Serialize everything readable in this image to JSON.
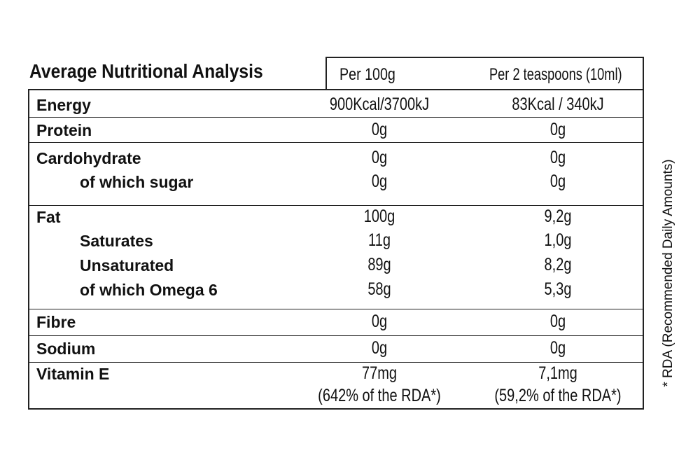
{
  "title": "Average Nutritional Analysis",
  "columns": {
    "per_100g": "Per 100g",
    "per_serving": "Per 2 teaspoons (10ml)"
  },
  "rows": {
    "energy": {
      "label": "Energy",
      "v1": "900Kcal/3700kJ",
      "v2": "83Kcal / 340kJ"
    },
    "protein": {
      "label": "Protein",
      "v1": "0g",
      "v2": "0g"
    },
    "carbohydrate": {
      "label": "Cardohydrate",
      "v1": "0g",
      "v2": "0g"
    },
    "sugar": {
      "label": "of which sugar",
      "v1": "0g",
      "v2": "0g"
    },
    "fat": {
      "label": "Fat",
      "v1": "100g",
      "v2": "9,2g"
    },
    "saturates": {
      "label": "Saturates",
      "v1": "11g",
      "v2": "1,0g"
    },
    "unsaturated": {
      "label": "Unsaturated",
      "v1": "89g",
      "v2": "8,2g"
    },
    "omega6": {
      "label": "of which Omega 6",
      "v1": "58g",
      "v2": "5,3g"
    },
    "fibre": {
      "label": "Fibre",
      "v1": "0g",
      "v2": "0g"
    },
    "sodium": {
      "label": "Sodium",
      "v1": "0g",
      "v2": "0g"
    },
    "vitamin_e": {
      "label": "Vitamin E",
      "v1": "77mg",
      "v2": "7,1mg",
      "rda1": "(642% of the RDA*)",
      "rda2": "(59,2% of the RDA*)"
    }
  },
  "footnote": "* RDA (Recommended Daily Amounts)"
}
